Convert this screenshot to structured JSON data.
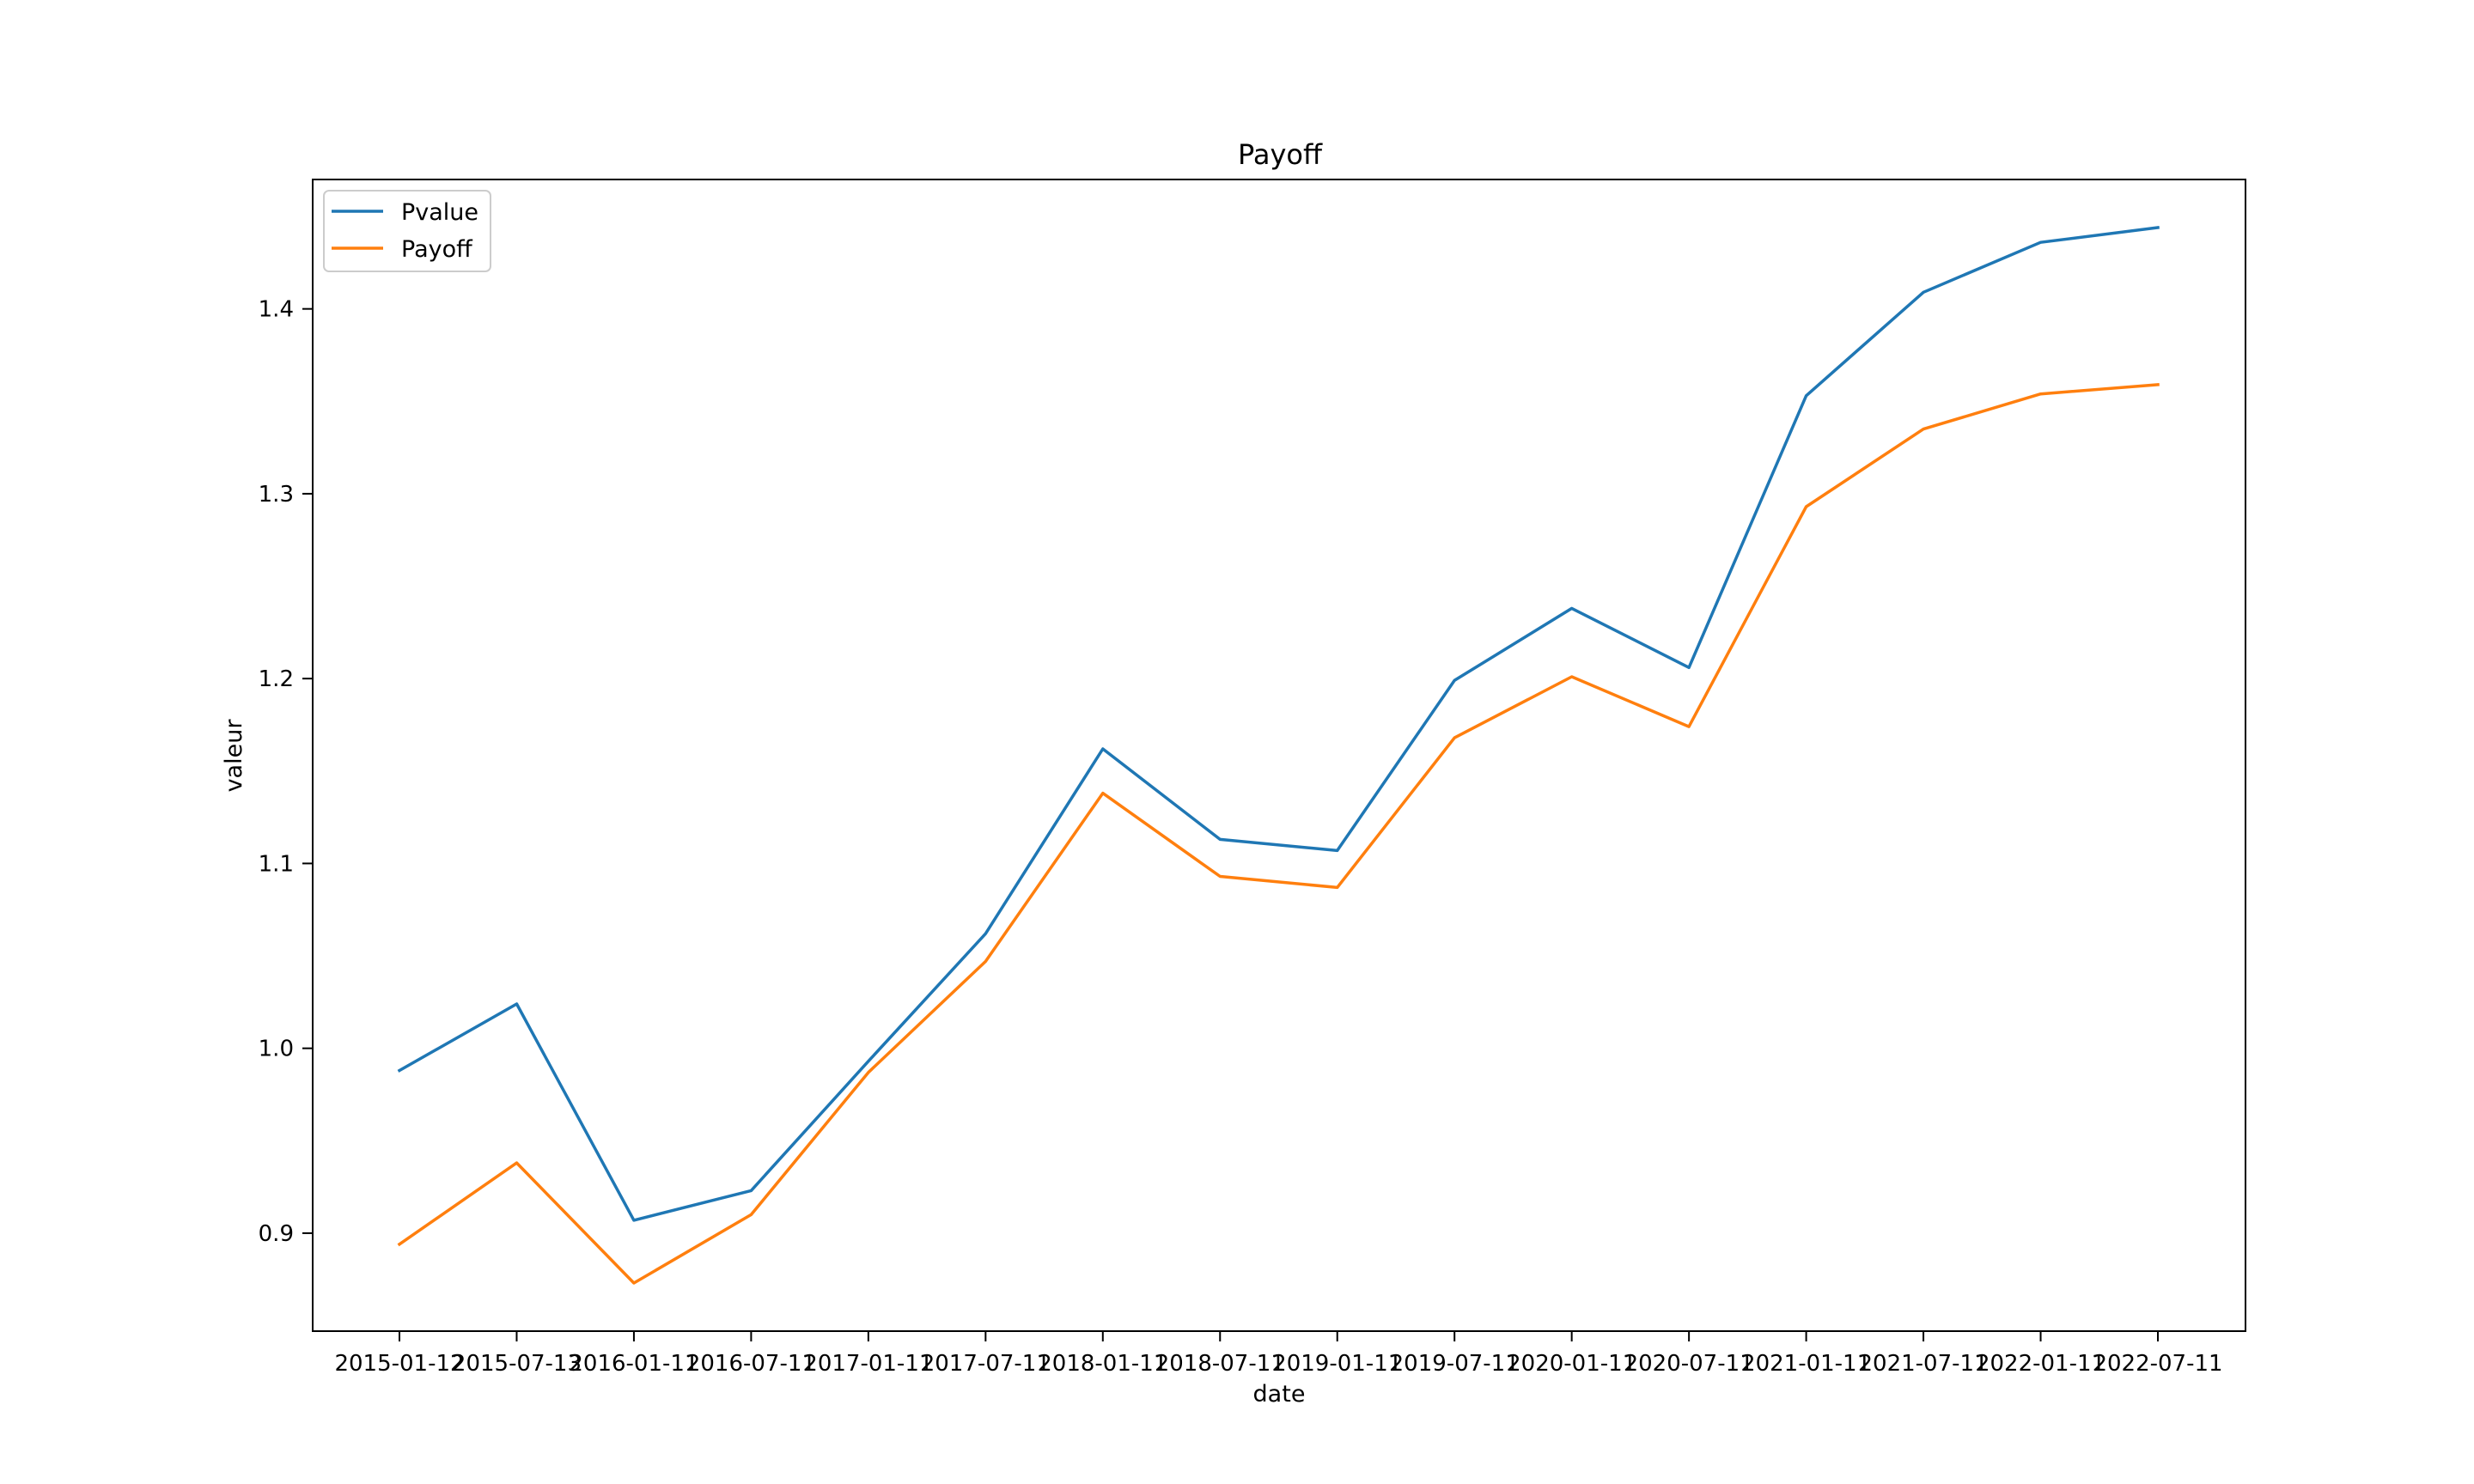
{
  "chart_data": {
    "type": "line",
    "title": "Payoff",
    "xlabel": "date",
    "ylabel": "valeur",
    "x": [
      "2015-01-12",
      "2015-07-13",
      "2016-01-11",
      "2016-07-11",
      "2017-01-11",
      "2017-07-11",
      "2018-01-11",
      "2018-07-11",
      "2019-01-11",
      "2019-07-11",
      "2020-01-11",
      "2020-07-11",
      "2021-01-11",
      "2021-07-11",
      "2022-01-11",
      "2022-07-11"
    ],
    "series": [
      {
        "name": "Pvalue",
        "color": "#1f77b4",
        "values": [
          0.988,
          1.024,
          0.907,
          0.923,
          0.993,
          1.062,
          1.162,
          1.113,
          1.107,
          1.199,
          1.238,
          1.206,
          1.353,
          1.409,
          1.436,
          1.444
        ]
      },
      {
        "name": "Payoff",
        "color": "#ff7f0e",
        "values": [
          0.894,
          0.938,
          0.873,
          0.91,
          0.987,
          1.047,
          1.138,
          1.093,
          1.087,
          1.168,
          1.201,
          1.174,
          1.293,
          1.335,
          1.354,
          1.359
        ]
      }
    ],
    "yticks": [
      "0.9",
      "1.0",
      "1.1",
      "1.2",
      "1.3",
      "1.4"
    ],
    "ylim": [
      0.847,
      1.47
    ],
    "grid": false,
    "legend": "upper left"
  }
}
